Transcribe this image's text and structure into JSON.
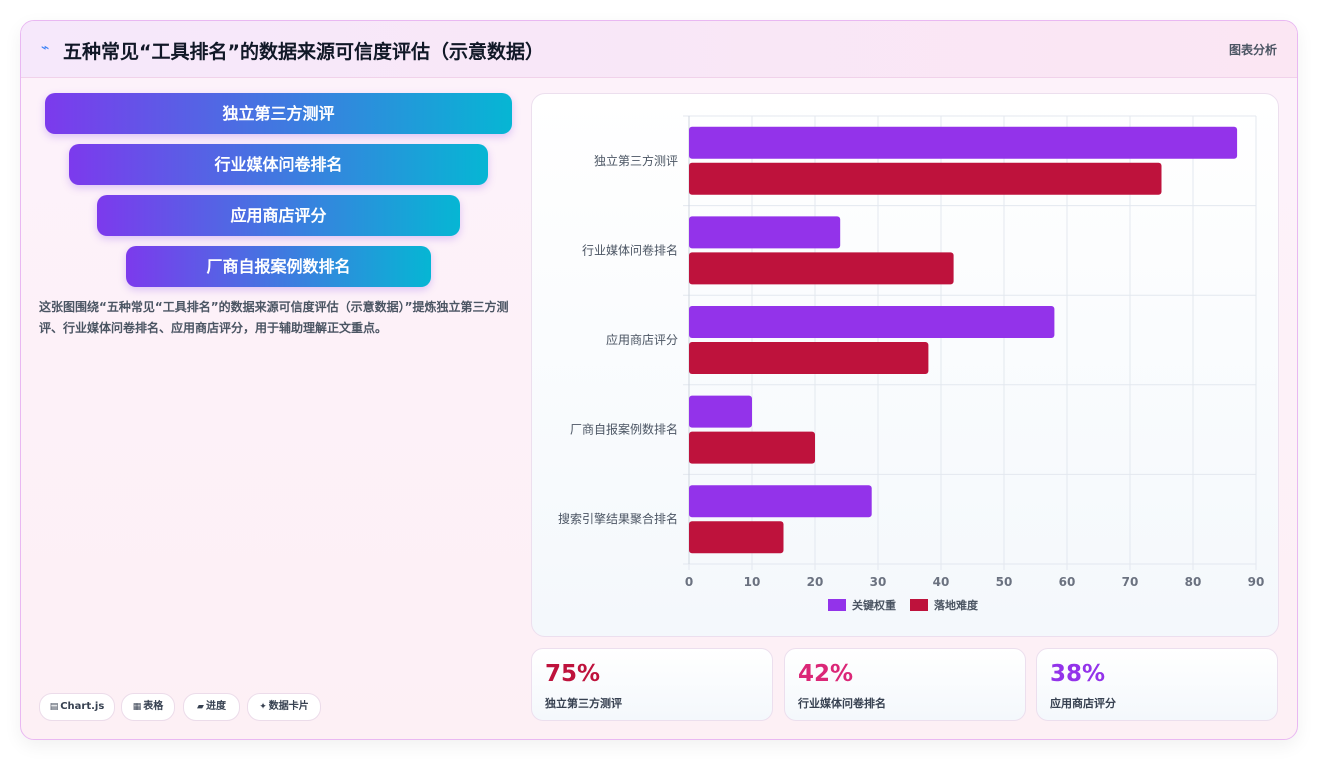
{
  "header": {
    "icon": "chart-line-icon",
    "title": "五种常见“工具排名”的数据来源可信度评估（示意数据）",
    "right_label": "图表分析"
  },
  "funnel": [
    "独立第三方测评",
    "行业媒体问卷排名",
    "应用商店评分",
    "厂商自报案例数排名"
  ],
  "description": "这张图围绕“五种常见“工具排名”的数据来源可信度评估（示意数据）”提炼独立第三方测评、行业媒体问卷排名、应用商店评分，用于辅助理解正文重点。",
  "chips": [
    {
      "icon": "chart-icon",
      "glyph": "▤",
      "label": "Chart.js"
    },
    {
      "icon": "table-icon",
      "glyph": "▦",
      "label": "表格"
    },
    {
      "icon": "progress-icon",
      "glyph": "▰",
      "label": "进度"
    },
    {
      "icon": "data-card-icon",
      "glyph": "✦",
      "label": "数据卡片"
    }
  ],
  "chart_data": {
    "type": "bar",
    "orientation": "horizontal",
    "categories": [
      "独立第三方测评",
      "行业媒体问卷排名",
      "应用商店评分",
      "厂商自报案例数排名",
      "搜索引擎结果聚合排名"
    ],
    "series": [
      {
        "name": "关键权重",
        "color": "#9333ea",
        "values": [
          87,
          24,
          58,
          10,
          29
        ]
      },
      {
        "name": "落地难度",
        "color": "#be123c",
        "values": [
          75,
          42,
          38,
          20,
          15
        ]
      }
    ],
    "xlim": [
      0,
      90
    ],
    "xticks": [
      0,
      10,
      20,
      30,
      40,
      50,
      60,
      70,
      80,
      90
    ],
    "grid": true,
    "legend": "bottom"
  },
  "stats": [
    {
      "value": "75%",
      "label": "独立第三方测评",
      "color": "#be123c"
    },
    {
      "value": "42%",
      "label": "行业媒体问卷排名",
      "color": "#db2777"
    },
    {
      "value": "38%",
      "label": "应用商店评分",
      "color": "#9333ea"
    }
  ]
}
